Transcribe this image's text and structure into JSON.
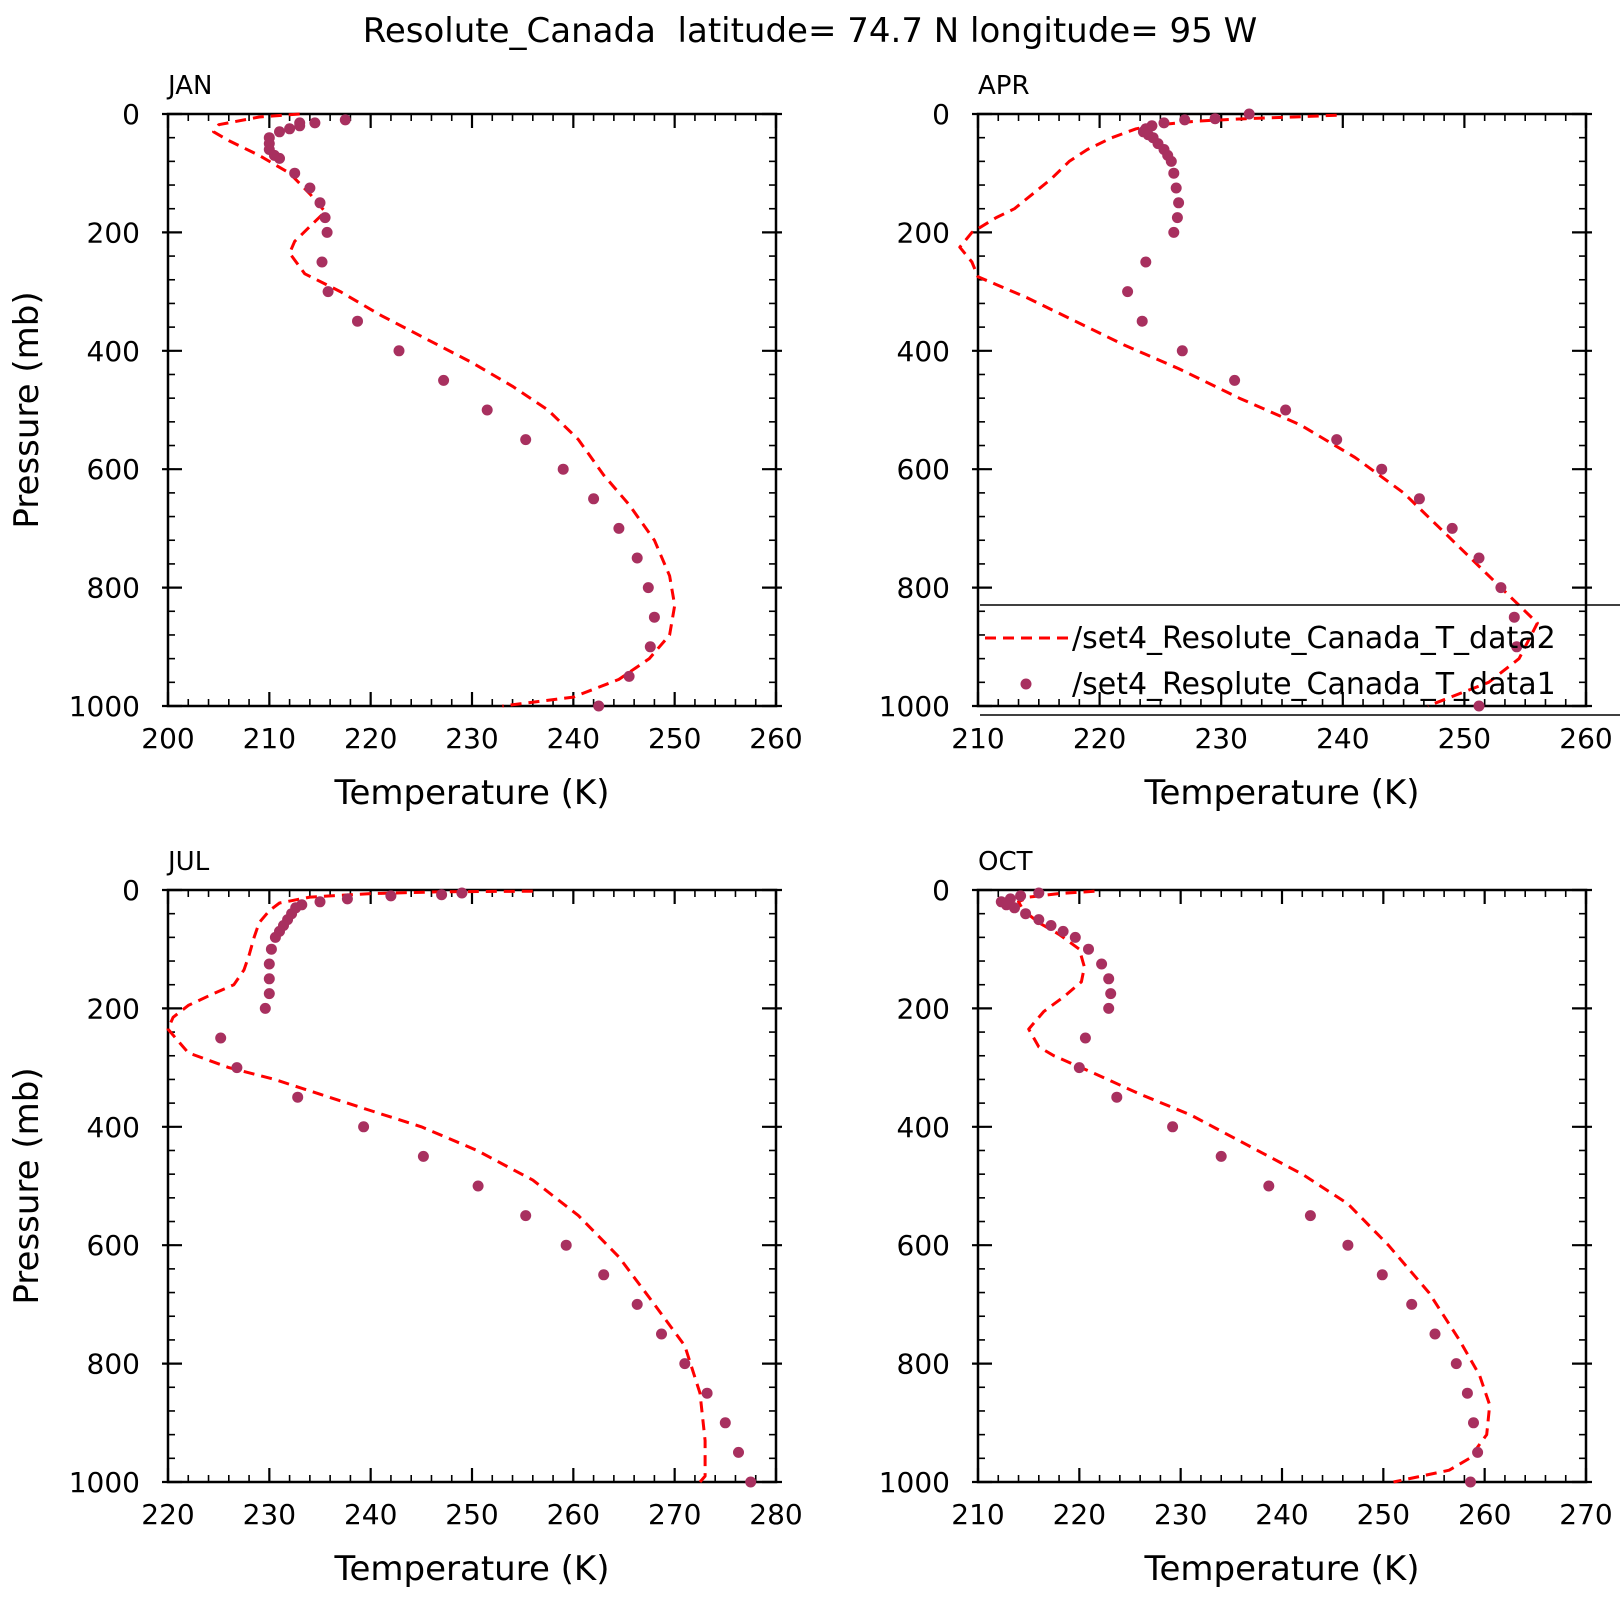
{
  "title": "Resolute_Canada  latitude= 74.7 N longitude= 95 W",
  "colors": {
    "model": "#ff0000",
    "obs": "#a8305f",
    "axes": "#000000"
  },
  "legend": {
    "line_label": "/set4_Resolute_Canada_T_data2",
    "dot_label": "/set4_Resolute_Canada_T_data1"
  },
  "chart_data": [
    {
      "type": "line",
      "panel": "JAN",
      "title": "JAN",
      "xlabel": "Temperature (K)",
      "ylabel": "Pressure (mb)",
      "xlim": [
        200,
        260
      ],
      "ylim": [
        1000,
        0
      ],
      "xticks": [
        200,
        210,
        220,
        230,
        240,
        250,
        260
      ],
      "yticks": [
        0,
        200,
        400,
        600,
        800,
        1000
      ],
      "series": [
        {
          "style": "dashed-line",
          "points": [
            [
              213,
              0
            ],
            [
              209,
              5
            ],
            [
              205,
              18
            ],
            [
              204.5,
              30
            ],
            [
              206,
              45
            ],
            [
              209,
              70
            ],
            [
              212,
              100
            ],
            [
              214,
              135
            ],
            [
              215.5,
              165
            ],
            [
              214,
              190
            ],
            [
              212.5,
              215
            ],
            [
              212,
              235
            ],
            [
              213.5,
              270
            ],
            [
              217,
              300
            ],
            [
              221,
              340
            ],
            [
              225.5,
              380
            ],
            [
              230,
              420
            ],
            [
              234,
              460
            ],
            [
              237.5,
              500
            ],
            [
              240.5,
              550
            ],
            [
              243,
              610
            ],
            [
              245.5,
              660
            ],
            [
              248,
              720
            ],
            [
              249.5,
              780
            ],
            [
              250,
              830
            ],
            [
              249.5,
              880
            ],
            [
              247.5,
              920
            ],
            [
              244.5,
              955
            ],
            [
              240,
              985
            ],
            [
              233,
              1000
            ]
          ]
        },
        {
          "style": "dots",
          "points": [
            [
              217.5,
              10
            ],
            [
              213,
              15
            ],
            [
              214.5,
              15
            ],
            [
              213,
              20
            ],
            [
              212,
              25
            ],
            [
              211,
              30
            ],
            [
              210,
              40
            ],
            [
              210,
              50
            ],
            [
              210,
              60
            ],
            [
              210.5,
              70
            ],
            [
              211,
              75
            ],
            [
              212.5,
              100
            ],
            [
              214,
              125
            ],
            [
              215,
              150
            ],
            [
              215.5,
              175
            ],
            [
              215.7,
              200
            ],
            [
              215.2,
              250
            ],
            [
              215.8,
              300
            ],
            [
              218.7,
              350
            ],
            [
              222.8,
              400
            ],
            [
              227.2,
              450
            ],
            [
              231.5,
              500
            ],
            [
              235.3,
              550
            ],
            [
              239,
              600
            ],
            [
              242,
              650
            ],
            [
              244.5,
              700
            ],
            [
              246.3,
              750
            ],
            [
              247.4,
              800
            ],
            [
              248,
              850
            ],
            [
              247.6,
              900
            ],
            [
              245.5,
              950
            ],
            [
              242.5,
              1000
            ]
          ]
        }
      ]
    },
    {
      "type": "line",
      "panel": "APR",
      "title": "APR",
      "xlabel": "Temperature (K)",
      "ylabel": "",
      "xlim": [
        210,
        260
      ],
      "ylim": [
        1000,
        0
      ],
      "xticks": [
        210,
        220,
        230,
        240,
        250,
        260
      ],
      "yticks": [
        0,
        200,
        400,
        600,
        800,
        1000
      ],
      "series": [
        {
          "style": "dashed-line",
          "points": [
            [
              239.5,
              2
            ],
            [
              236,
              5
            ],
            [
              232,
              8
            ],
            [
              228,
              12
            ],
            [
              225,
              18
            ],
            [
              223,
              25
            ],
            [
              221,
              40
            ],
            [
              219,
              60
            ],
            [
              217.5,
              80
            ],
            [
              216,
              110
            ],
            [
              214.5,
              135
            ],
            [
              213,
              160
            ],
            [
              211.5,
              175
            ],
            [
              209.5,
              200
            ],
            [
              208.5,
              225
            ],
            [
              209.5,
              250
            ],
            [
              210,
              275
            ],
            [
              214,
              310
            ],
            [
              218,
              350
            ],
            [
              222,
              390
            ],
            [
              226.5,
              430
            ],
            [
              231.5,
              480
            ],
            [
              236.5,
              525
            ],
            [
              241,
              580
            ],
            [
              245,
              640
            ],
            [
              248.5,
              710
            ],
            [
              251,
              760
            ],
            [
              253,
              800
            ],
            [
              255,
              840
            ],
            [
              256,
              860
            ],
            [
              254.5,
              920
            ],
            [
              252,
              960
            ],
            [
              247,
              1000
            ]
          ]
        },
        {
          "style": "dots",
          "points": [
            [
              232.3,
              0
            ],
            [
              229.5,
              8
            ],
            [
              227,
              10
            ],
            [
              225.3,
              15
            ],
            [
              224.3,
              20
            ],
            [
              223.8,
              25
            ],
            [
              223.6,
              30
            ],
            [
              224,
              35
            ],
            [
              224.4,
              40
            ],
            [
              224.8,
              50
            ],
            [
              225.3,
              60
            ],
            [
              225.6,
              70
            ],
            [
              225.9,
              80
            ],
            [
              226.1,
              100
            ],
            [
              226.3,
              125
            ],
            [
              226.5,
              150
            ],
            [
              226.4,
              175
            ],
            [
              226.1,
              200
            ],
            [
              223.8,
              250
            ],
            [
              222.3,
              300
            ],
            [
              223.5,
              350
            ],
            [
              226.8,
              400
            ],
            [
              231.1,
              450
            ],
            [
              235.3,
              500
            ],
            [
              239.5,
              550
            ],
            [
              243.2,
              600
            ],
            [
              246.3,
              650
            ],
            [
              249,
              700
            ],
            [
              251.2,
              750
            ],
            [
              253,
              800
            ],
            [
              254.1,
              850
            ],
            [
              254.3,
              900
            ],
            [
              251.2,
              1000
            ]
          ]
        }
      ]
    },
    {
      "type": "line",
      "panel": "JUL",
      "title": "JUL",
      "xlabel": "Temperature (K)",
      "ylabel": "Pressure (mb)",
      "xlim": [
        220,
        280
      ],
      "ylim": [
        1000,
        0
      ],
      "xticks": [
        220,
        230,
        240,
        250,
        260,
        270,
        280
      ],
      "yticks": [
        0,
        200,
        400,
        600,
        800,
        1000
      ],
      "series": [
        {
          "style": "dashed-line",
          "points": [
            [
              256,
              2
            ],
            [
              247,
              3
            ],
            [
              240,
              6
            ],
            [
              234,
              12
            ],
            [
              231,
              22
            ],
            [
              230,
              35
            ],
            [
              229,
              55
            ],
            [
              228.5,
              80
            ],
            [
              228,
              110
            ],
            [
              227.5,
              135
            ],
            [
              226.5,
              160
            ],
            [
              224.5,
              175
            ],
            [
              222,
              195
            ],
            [
              220.5,
              215
            ],
            [
              220,
              235
            ],
            [
              221,
              255
            ],
            [
              222,
              275
            ],
            [
              226,
              300
            ],
            [
              230.5,
              320
            ],
            [
              235,
              345
            ],
            [
              239.5,
              370
            ],
            [
              245,
              400
            ],
            [
              250.5,
              440
            ],
            [
              256,
              490
            ],
            [
              260.5,
              550
            ],
            [
              264.5,
              620
            ],
            [
              268,
              700
            ],
            [
              271,
              770
            ],
            [
              272.5,
              850
            ],
            [
              273,
              930
            ],
            [
              273,
              990
            ],
            [
              272.5,
              1000
            ]
          ]
        },
        {
          "style": "dots",
          "points": [
            [
              249,
              5
            ],
            [
              247,
              8
            ],
            [
              242,
              10
            ],
            [
              237.7,
              15
            ],
            [
              235,
              20
            ],
            [
              233.2,
              25
            ],
            [
              232.6,
              30
            ],
            [
              232.2,
              40
            ],
            [
              231.8,
              50
            ],
            [
              231.4,
              60
            ],
            [
              231,
              70
            ],
            [
              230.6,
              80
            ],
            [
              230.2,
              100
            ],
            [
              230,
              125
            ],
            [
              230,
              150
            ],
            [
              230,
              175
            ],
            [
              229.6,
              200
            ],
            [
              225.2,
              250
            ],
            [
              226.8,
              300
            ],
            [
              232.8,
              350
            ],
            [
              239.3,
              400
            ],
            [
              245.2,
              450
            ],
            [
              250.6,
              500
            ],
            [
              255.3,
              550
            ],
            [
              259.3,
              600
            ],
            [
              263,
              650
            ],
            [
              266.3,
              700
            ],
            [
              268.7,
              750
            ],
            [
              271,
              800
            ],
            [
              273.2,
              850
            ],
            [
              275,
              900
            ],
            [
              276.3,
              950
            ],
            [
              277.5,
              1000
            ]
          ]
        }
      ]
    },
    {
      "type": "line",
      "panel": "OCT",
      "title": "OCT",
      "xlabel": "Temperature (K)",
      "ylabel": "",
      "xlim": [
        210,
        270
      ],
      "ylim": [
        1000,
        0
      ],
      "xticks": [
        210,
        220,
        230,
        240,
        250,
        260,
        270
      ],
      "yticks": [
        0,
        200,
        400,
        600,
        800,
        1000
      ],
      "series": [
        {
          "style": "dashed-line",
          "points": [
            [
              221.5,
              2
            ],
            [
              218,
              6
            ],
            [
              215,
              12
            ],
            [
              214,
              20
            ],
            [
              214.5,
              35
            ],
            [
              216,
              55
            ],
            [
              218,
              75
            ],
            [
              220,
              100
            ],
            [
              220.5,
              130
            ],
            [
              220.2,
              155
            ],
            [
              218.5,
              180
            ],
            [
              216.5,
              205
            ],
            [
              215,
              235
            ],
            [
              216,
              265
            ],
            [
              217.5,
              280
            ],
            [
              221.5,
              310
            ],
            [
              226,
              345
            ],
            [
              231,
              380
            ],
            [
              236.5,
              430
            ],
            [
              242,
              480
            ],
            [
              246.5,
              530
            ],
            [
              250.5,
              600
            ],
            [
              254.5,
              680
            ],
            [
              257.5,
              760
            ],
            [
              259.5,
              820
            ],
            [
              260.5,
              870
            ],
            [
              260.2,
              920
            ],
            [
              258.5,
              960
            ],
            [
              256.5,
              980
            ],
            [
              251,
              1000
            ]
          ]
        },
        {
          "style": "dots",
          "points": [
            [
              216,
              5
            ],
            [
              214.2,
              10
            ],
            [
              213.2,
              15
            ],
            [
              212.3,
              20
            ],
            [
              212.8,
              25
            ],
            [
              213.6,
              30
            ],
            [
              214.7,
              40
            ],
            [
              216,
              50
            ],
            [
              217.2,
              60
            ],
            [
              218.4,
              70
            ],
            [
              219.6,
              80
            ],
            [
              220.9,
              100
            ],
            [
              222.2,
              125
            ],
            [
              222.9,
              150
            ],
            [
              223.1,
              175
            ],
            [
              222.9,
              200
            ],
            [
              220.6,
              250
            ],
            [
              220,
              300
            ],
            [
              223.7,
              350
            ],
            [
              229.2,
              400
            ],
            [
              234,
              450
            ],
            [
              238.7,
              500
            ],
            [
              242.8,
              550
            ],
            [
              246.5,
              600
            ],
            [
              249.9,
              650
            ],
            [
              252.8,
              700
            ],
            [
              255.1,
              750
            ],
            [
              257.2,
              800
            ],
            [
              258.3,
              850
            ],
            [
              258.9,
              900
            ],
            [
              259.3,
              950
            ],
            [
              258.6,
              1000
            ]
          ]
        }
      ]
    }
  ]
}
